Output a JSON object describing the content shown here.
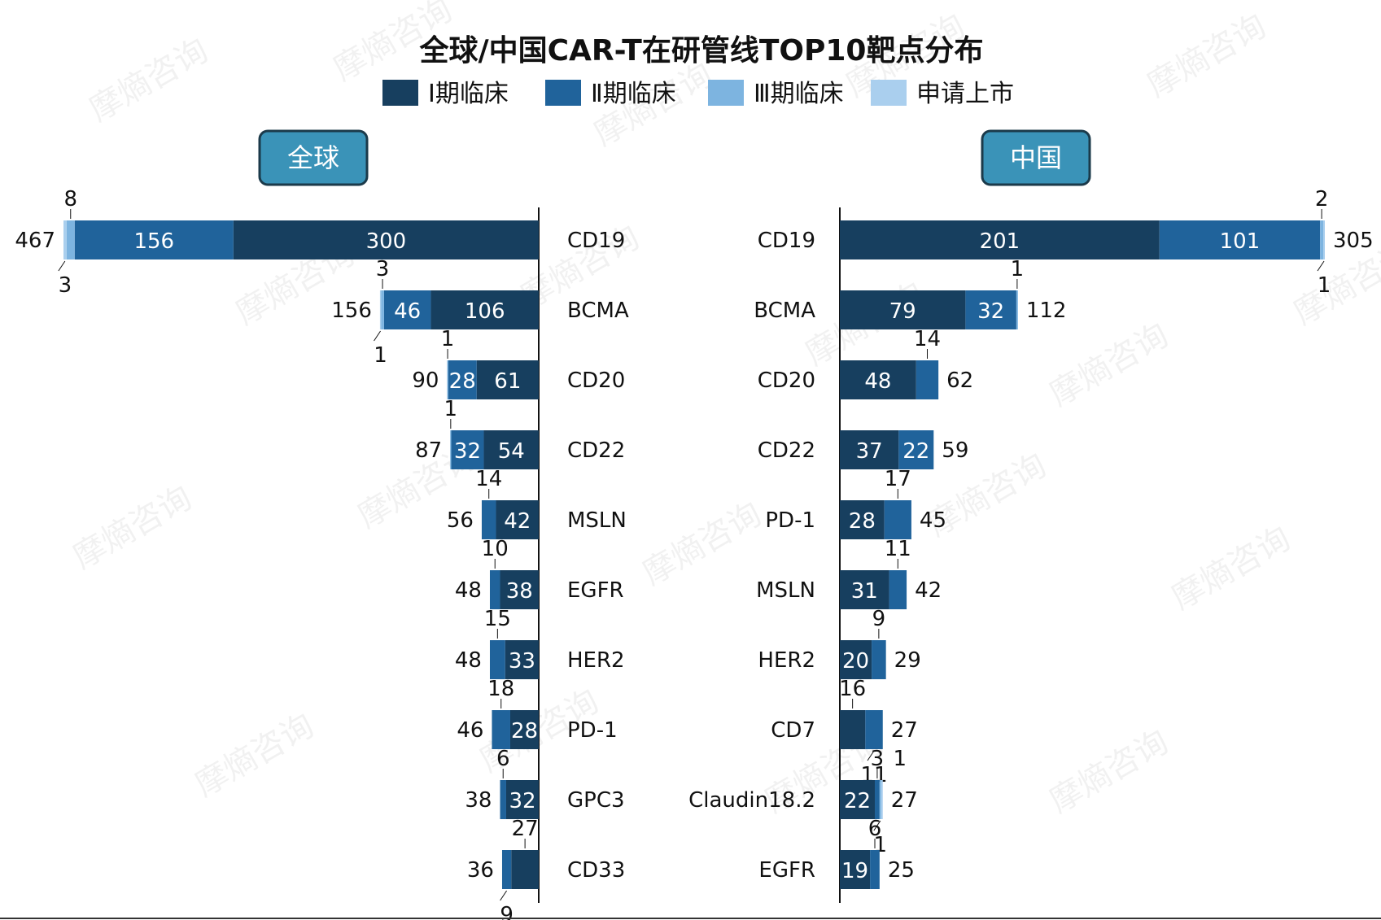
{
  "colors": {
    "phase1": "#173f5f",
    "phase2": "#20639b",
    "phase3": "#7db4e0",
    "filing": "#aacfee",
    "region_box": "#3a93b8"
  },
  "watermark": "摩熵咨询",
  "chart_data": {
    "type": "bar",
    "orientation": "horizontal",
    "stacked": true,
    "title": "全球/中国CAR-T在研管线TOP10靶点分布",
    "legend": {
      "placement": "top",
      "entries": [
        "Ⅰ期临床",
        "Ⅱ期临床",
        "Ⅲ期临床",
        "申请上市"
      ]
    },
    "panels": [
      {
        "region": "全球",
        "direction": "left",
        "xlim": [
          0,
          467
        ],
        "rows": [
          {
            "category": "CD19",
            "total": "467",
            "values": [
              300,
              156,
              8,
              3
            ],
            "labels": [
              "300",
              "156",
              "8",
              "3"
            ]
          },
          {
            "category": "BCMA",
            "total": "156",
            "values": [
              106,
              46,
              3,
              1
            ],
            "labels": [
              "106",
              "46",
              "3",
              "1"
            ]
          },
          {
            "category": "CD20",
            "total": "90",
            "values": [
              61,
              28,
              1,
              0
            ],
            "labels": [
              "61",
              "28",
              "1",
              ""
            ]
          },
          {
            "category": "CD22",
            "total": "87",
            "values": [
              54,
              32,
              1,
              0
            ],
            "labels": [
              "54",
              "32",
              "1",
              ""
            ]
          },
          {
            "category": "MSLN",
            "total": "56",
            "values": [
              42,
              14,
              0,
              0
            ],
            "labels": [
              "42",
              "14",
              "",
              ""
            ]
          },
          {
            "category": "EGFR",
            "total": "48",
            "values": [
              38,
              10,
              0,
              0
            ],
            "labels": [
              "38",
              "10",
              "",
              ""
            ]
          },
          {
            "category": "HER2",
            "total": "48",
            "values": [
              33,
              15,
              0,
              0
            ],
            "labels": [
              "33",
              "15",
              "",
              ""
            ]
          },
          {
            "category": "PD-1",
            "total": "46",
            "values": [
              28,
              18,
              0,
              0
            ],
            "labels": [
              "28",
              "18",
              "",
              ""
            ]
          },
          {
            "category": "GPC3",
            "total": "38",
            "values": [
              32,
              6,
              0,
              0
            ],
            "labels": [
              "32",
              "6",
              "",
              ""
            ]
          },
          {
            "category": "CD33",
            "total": "36",
            "values": [
              27,
              9,
              0,
              0
            ],
            "labels": [
              "27",
              "9",
              "",
              ""
            ]
          }
        ]
      },
      {
        "region": "中国",
        "direction": "right",
        "xlim": [
          0,
          305
        ],
        "rows": [
          {
            "category": "CD19",
            "total": "305",
            "values": [
              201,
              101,
              2,
              1
            ],
            "labels": [
              "201",
              "101",
              "2",
              "1"
            ]
          },
          {
            "category": "BCMA",
            "total": "112",
            "values": [
              79,
              32,
              1,
              0
            ],
            "labels": [
              "79",
              "32",
              "1",
              ""
            ]
          },
          {
            "category": "CD20",
            "total": "62",
            "values": [
              48,
              14,
              0,
              0
            ],
            "labels": [
              "48",
              "14",
              "",
              ""
            ]
          },
          {
            "category": "CD22",
            "total": "59",
            "values": [
              37,
              22,
              0,
              0
            ],
            "labels": [
              "37",
              "22",
              "",
              ""
            ]
          },
          {
            "category": "PD-1",
            "total": "45",
            "values": [
              28,
              17,
              0,
              0
            ],
            "labels": [
              "28",
              "17",
              "",
              ""
            ]
          },
          {
            "category": "MSLN",
            "total": "42",
            "values": [
              31,
              11,
              0,
              0
            ],
            "labels": [
              "31",
              "11",
              "",
              ""
            ]
          },
          {
            "category": "HER2",
            "total": "29",
            "values": [
              20,
              9,
              0,
              0
            ],
            "labels": [
              "20",
              "9",
              "",
              ""
            ]
          },
          {
            "category": "CD7",
            "total": "27",
            "values": [
              16,
              11,
              0,
              0
            ],
            "labels": [
              "16",
              "11",
              "",
              ""
            ]
          },
          {
            "category": "Claudin18.2",
            "total": "27",
            "values": [
              22,
              3,
              1,
              1
            ],
            "labels": [
              "22",
              "3",
              "1",
              "1"
            ]
          },
          {
            "category": "EGFR",
            "total": "25",
            "values": [
              19,
              6,
              0,
              0
            ],
            "labels": [
              "19",
              "6",
              "",
              ""
            ]
          }
        ]
      }
    ]
  }
}
